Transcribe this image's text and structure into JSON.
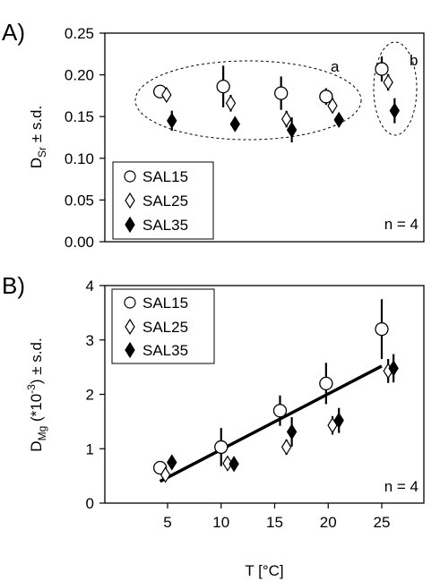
{
  "chart_data": [
    {
      "panel": "A)",
      "type": "scatter",
      "ylabel_main": "D",
      "ylabel_sub": "Sr",
      "ylabel_rest": " ± s.d.",
      "ylim": [
        0,
        0.25
      ],
      "yticks": [
        "0.00",
        "0.05",
        "0.10",
        "0.15",
        "0.20",
        "0.25"
      ],
      "xlim": [
        0,
        28
      ],
      "grid": false,
      "legend_position": "bottom-left",
      "n_label": "n = 4",
      "series": [
        {
          "name": "SAL15",
          "marker": "open-circle",
          "x": [
            4.3,
            10.2,
            15.6,
            19.8,
            25.0
          ],
          "y": [
            0.18,
            0.186,
            0.178,
            0.174,
            0.207
          ],
          "err": [
            0.007,
            0.025,
            0.02,
            0.01,
            0.015
          ]
        },
        {
          "name": "SAL25",
          "marker": "open-diamond",
          "x": [
            4.9,
            10.9,
            16.1,
            20.4,
            25.6
          ],
          "y": [
            0.176,
            0.166,
            0.147,
            0.163,
            0.191
          ],
          "err": [
            0.006,
            0.01,
            0.01,
            0.009,
            0.01
          ]
        },
        {
          "name": "SAL35",
          "marker": "filled-diamond",
          "x": [
            5.4,
            11.3,
            16.6,
            21.0,
            26.2
          ],
          "y": [
            0.145,
            0.141,
            0.134,
            0.146,
            0.157
          ],
          "err": [
            0.012,
            0.008,
            0.015,
            0.005,
            0.015
          ]
        }
      ],
      "annotations": [
        {
          "text": "a",
          "group": "5–20 °C"
        },
        {
          "text": "b",
          "group": "25 °C"
        }
      ]
    },
    {
      "panel": "B)",
      "type": "scatter",
      "ylabel_main": "D",
      "ylabel_sub": "Mg",
      "ylabel_mid": " (*10",
      "ylabel_sup": "-3",
      "ylabel_rest": ") ± s.d.",
      "xlabel": "T [°C]",
      "xticks": [
        "5",
        "10",
        "15",
        "20",
        "25"
      ],
      "xtick_values": [
        5,
        10,
        15,
        20,
        25
      ],
      "xlim": [
        0,
        28
      ],
      "ylim": [
        0,
        4
      ],
      "yticks": [
        "0",
        "1",
        "2",
        "3",
        "4"
      ],
      "grid": false,
      "legend_position": "top-left",
      "n_label": "n = 4",
      "series": [
        {
          "name": "SAL15",
          "marker": "open-circle",
          "x": [
            4.3,
            10.0,
            15.5,
            19.8,
            25.0
          ],
          "y": [
            0.65,
            1.03,
            1.7,
            2.2,
            3.2
          ],
          "err": [
            0.1,
            0.35,
            0.28,
            0.38,
            0.55
          ]
        },
        {
          "name": "SAL25",
          "marker": "open-diamond",
          "x": [
            4.8,
            10.6,
            16.1,
            20.4,
            25.6
          ],
          "y": [
            0.52,
            0.73,
            1.03,
            1.43,
            2.43
          ],
          "err": [
            0.06,
            0.12,
            0.14,
            0.17,
            0.22
          ]
        },
        {
          "name": "SAL35",
          "marker": "filled-diamond",
          "x": [
            5.4,
            11.2,
            16.6,
            21.0,
            26.1
          ],
          "y": [
            0.75,
            0.72,
            1.31,
            1.52,
            2.48
          ],
          "err": [
            0.06,
            0.07,
            0.27,
            0.23,
            0.26
          ]
        }
      ],
      "trendline": {
        "x": [
          4.3,
          25.0
        ],
        "y": [
          0.4,
          2.52
        ]
      }
    }
  ]
}
